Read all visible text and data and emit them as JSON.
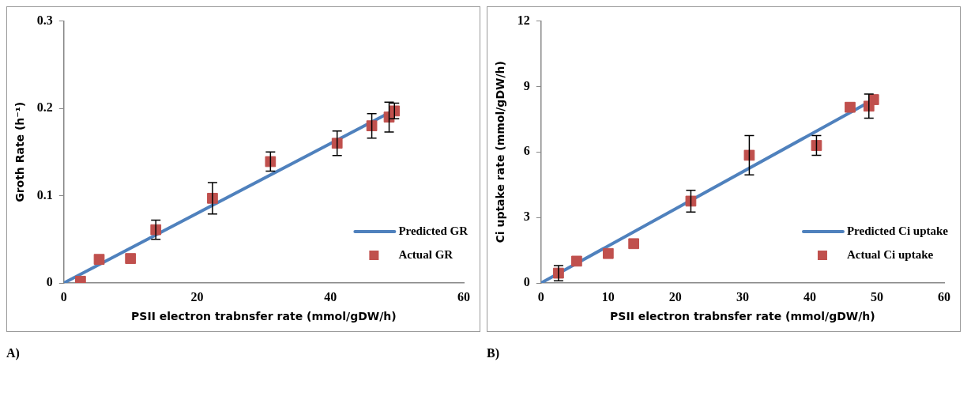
{
  "chart_data": [
    {
      "type": "scatter",
      "xlabel": "PSII electron trabnsfer rate (mmol/gDW/h)",
      "ylabel": "Groth Rate (h⁻¹)",
      "xlim": [
        0,
        60
      ],
      "xticks": [
        0,
        20,
        40,
        60
      ],
      "ylim": [
        0,
        0.3
      ],
      "yticks": [
        0,
        0.1,
        0.2,
        0.3
      ],
      "grid": false,
      "legend": "bottom right",
      "annotations": [
        "A)"
      ],
      "series": [
        {
          "name": "Predicted GR",
          "type": "line",
          "color": "#4f81bd",
          "x": [
            0,
            49.6
          ],
          "values": [
            0,
            0.198
          ],
          "line_style": "solid"
        },
        {
          "name": "Actual GR",
          "type": "scatter",
          "color": "#c0504d",
          "marker": "square",
          "x": [
            2.5,
            5.3,
            10,
            13.8,
            22.3,
            31,
            41,
            46.2,
            48.8,
            49.6
          ],
          "values": [
            0.002,
            0.027,
            0.028,
            0.061,
            0.097,
            0.139,
            0.16,
            0.18,
            0.19,
            0.197
          ],
          "errors": [
            null,
            null,
            null,
            0.011,
            0.018,
            0.011,
            0.014,
            0.014,
            0.017,
            0.009
          ]
        }
      ]
    },
    {
      "type": "scatter",
      "xlabel": "PSII electron trabnsfer rate (mmol/gDW/h)",
      "ylabel": "Ci uptake rate (mmol/gDW/h)",
      "xlim": [
        0,
        60
      ],
      "xticks": [
        0,
        10,
        20,
        30,
        40,
        50,
        60
      ],
      "ylim": [
        0,
        12
      ],
      "yticks": [
        0,
        3,
        6,
        9,
        12
      ],
      "grid": false,
      "legend": "bottom right",
      "annotations": [
        "B)"
      ],
      "series": [
        {
          "name": "Predicted Ci uptake",
          "type": "line",
          "color": "#4f81bd",
          "x": [
            0,
            49.5
          ],
          "values": [
            0,
            8.4
          ],
          "line_style": "solid"
        },
        {
          "name": "Actual Ci uptake",
          "type": "scatter",
          "color": "#c0504d",
          "marker": "square",
          "x": [
            2.6,
            5.3,
            10,
            13.8,
            22.3,
            31,
            41,
            46,
            48.8,
            49.5
          ],
          "values": [
            0.45,
            1.0,
            1.35,
            1.8,
            3.75,
            5.85,
            6.3,
            8.05,
            8.1,
            8.4
          ],
          "errors": [
            0.35,
            null,
            null,
            null,
            0.5,
            0.9,
            0.45,
            null,
            0.55,
            null
          ]
        }
      ]
    }
  ]
}
